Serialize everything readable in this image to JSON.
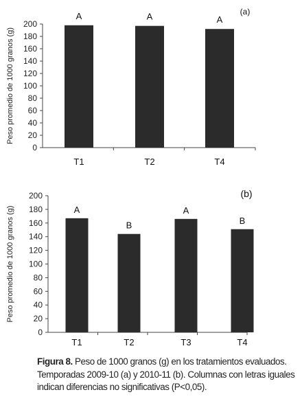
{
  "chart_data": [
    {
      "type": "bar",
      "panel_label": "(a)",
      "categories": [
        "T1",
        "T2",
        "T4"
      ],
      "values": [
        198,
        197,
        192
      ],
      "letters": [
        "A",
        "A",
        "A"
      ],
      "ylabel": "Peso promedio de 1000 granos (g)",
      "ylim": [
        0,
        200
      ],
      "yticks": [
        "0",
        "20",
        "40",
        "60",
        "80",
        "100",
        "120",
        "140",
        "160",
        "180",
        "200"
      ],
      "grid": false,
      "bar_color": "#2b2b2b"
    },
    {
      "type": "bar",
      "panel_label": "(b)",
      "categories": [
        "T1",
        "T2",
        "T3",
        "T4"
      ],
      "values": [
        167,
        144,
        166,
        151
      ],
      "letters": [
        "A",
        "B",
        "A",
        "B"
      ],
      "ylabel": "Peso promedio de 1000 granos (g)",
      "ylim": [
        0,
        200
      ],
      "yticks": [
        "0",
        "20",
        "40",
        "60",
        "80",
        "100",
        "120",
        "140",
        "160",
        "180",
        "200"
      ],
      "grid": false,
      "bar_color": "#2b2b2b"
    }
  ],
  "caption": {
    "label": "Figura 8.",
    "text": " Peso de 1000 granos (g) en los tratamientos evaluados. Temporadas 2009-10 (a) y 2010-11 (b). Columnas con letras iguales indican diferencias no significativas (P<0,05)."
  }
}
